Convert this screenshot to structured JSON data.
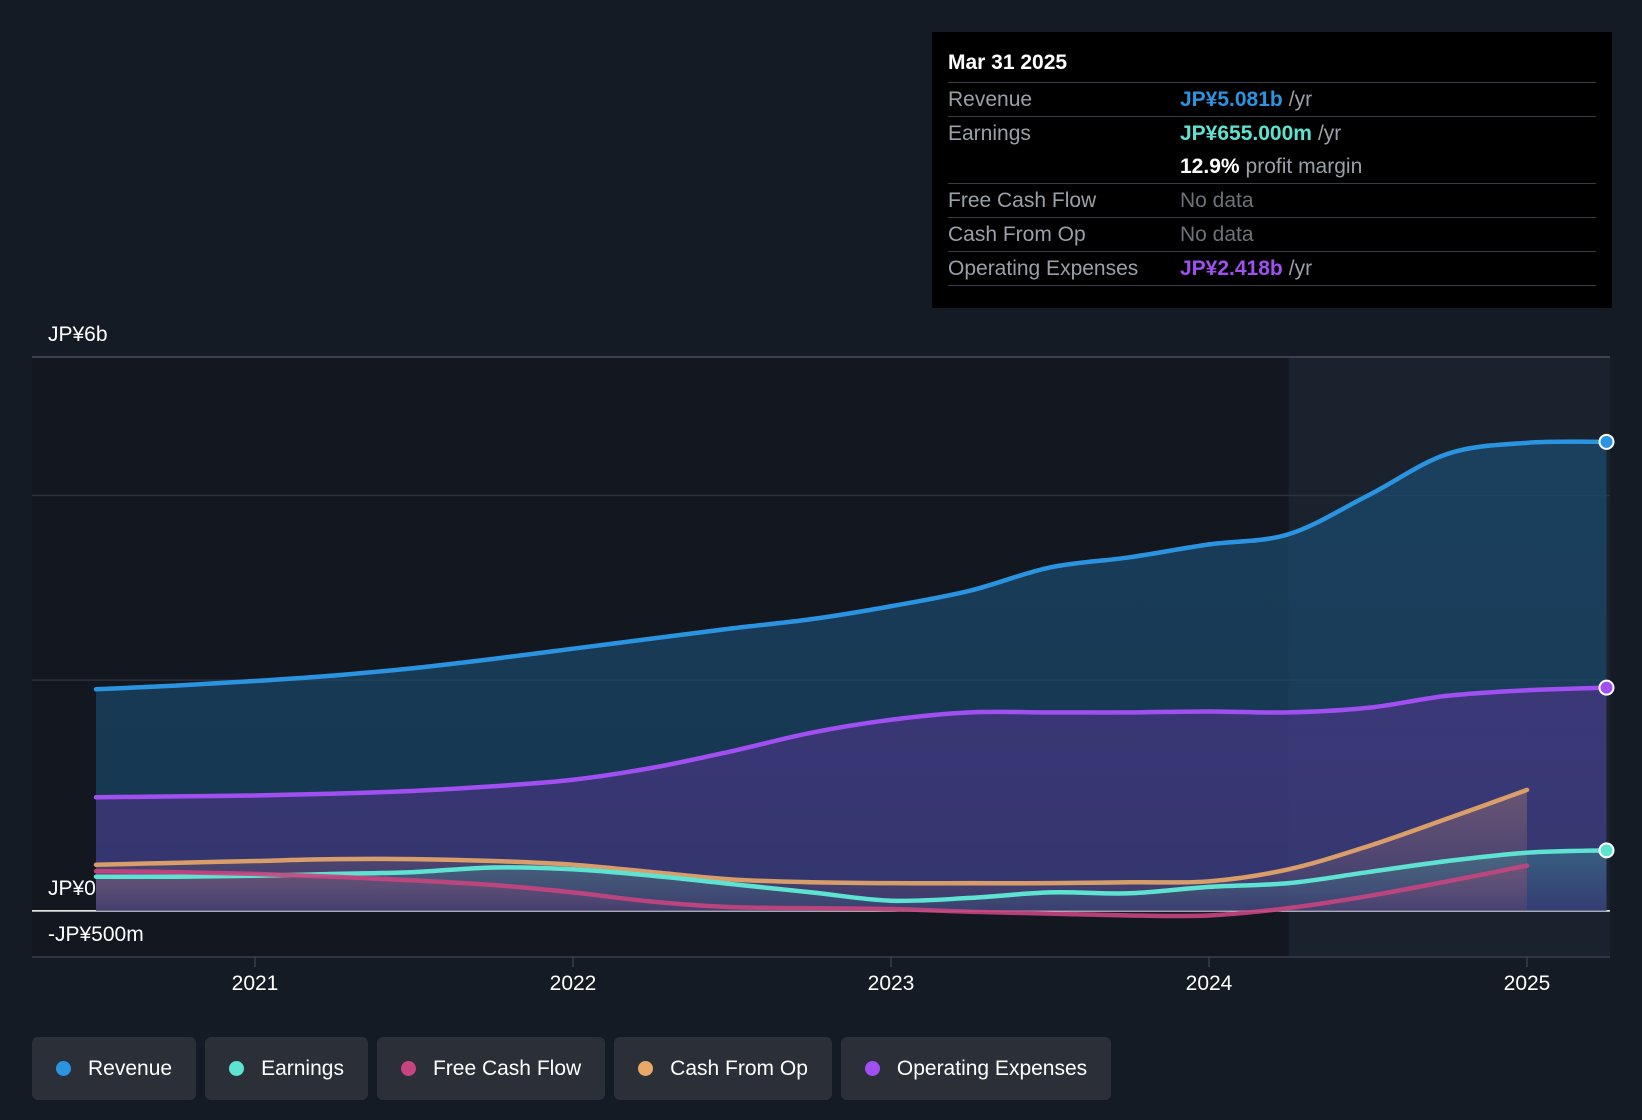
{
  "tooltip": {
    "date": "Mar 31 2025",
    "rows": {
      "revenue": {
        "label": "Revenue",
        "value": "JP¥5.081b",
        "unit": "/yr",
        "color": "#2b94e0"
      },
      "earnings": {
        "label": "Earnings",
        "value": "JP¥655.000m",
        "unit": "/yr",
        "color": "#5ee3d2"
      },
      "margin": {
        "value": "12.9%",
        "text": "profit margin"
      },
      "fcf": {
        "label": "Free Cash Flow",
        "value": "No data"
      },
      "cfo": {
        "label": "Cash From Op",
        "value": "No data"
      },
      "opex": {
        "label": "Operating Expenses",
        "value": "JP¥2.418b",
        "unit": "/yr",
        "color": "#a04ff0"
      }
    }
  },
  "legend": [
    {
      "label": "Revenue",
      "color": "#2b94e0"
    },
    {
      "label": "Earnings",
      "color": "#5ee3d2"
    },
    {
      "label": "Free Cash Flow",
      "color": "#c64580"
    },
    {
      "label": "Cash From Op",
      "color": "#e9a969"
    },
    {
      "label": "Operating Expenses",
      "color": "#a04ff0"
    }
  ],
  "chart_data": {
    "type": "area",
    "y_tick_labels": {
      "top": "JP¥6b",
      "zero": "JP¥0",
      "bottom": "-JP¥500m"
    },
    "ylim": [
      -500,
      6000
    ],
    "x_ticks": [
      2021,
      2022,
      2023,
      2024,
      2025
    ],
    "x_range": [
      2020.5,
      2025.25
    ],
    "highlight_start": 2024.25,
    "series": [
      {
        "name": "Revenue",
        "color": "#2b94e0",
        "points": [
          [
            2020.5,
            2400
          ],
          [
            2020.75,
            2440
          ],
          [
            2021.0,
            2490
          ],
          [
            2021.25,
            2550
          ],
          [
            2021.5,
            2630
          ],
          [
            2021.75,
            2730
          ],
          [
            2022.0,
            2840
          ],
          [
            2022.25,
            2950
          ],
          [
            2022.5,
            3060
          ],
          [
            2022.75,
            3160
          ],
          [
            2023.0,
            3300
          ],
          [
            2023.25,
            3470
          ],
          [
            2023.5,
            3720
          ],
          [
            2023.75,
            3830
          ],
          [
            2024.0,
            3970
          ],
          [
            2024.25,
            4080
          ],
          [
            2024.5,
            4500
          ],
          [
            2024.75,
            4950
          ],
          [
            2025.0,
            5070
          ],
          [
            2025.25,
            5081
          ]
        ]
      },
      {
        "name": "Operating Expenses",
        "color": "#a04ff0",
        "points": [
          [
            2020.5,
            1230
          ],
          [
            2020.75,
            1240
          ],
          [
            2021.0,
            1250
          ],
          [
            2021.25,
            1270
          ],
          [
            2021.5,
            1300
          ],
          [
            2021.75,
            1350
          ],
          [
            2022.0,
            1420
          ],
          [
            2022.25,
            1550
          ],
          [
            2022.5,
            1730
          ],
          [
            2022.75,
            1930
          ],
          [
            2023.0,
            2070
          ],
          [
            2023.25,
            2150
          ],
          [
            2023.5,
            2150
          ],
          [
            2023.75,
            2150
          ],
          [
            2024.0,
            2160
          ],
          [
            2024.25,
            2150
          ],
          [
            2024.5,
            2200
          ],
          [
            2024.75,
            2330
          ],
          [
            2025.0,
            2390
          ],
          [
            2025.25,
            2418
          ]
        ]
      },
      {
        "name": "Cash From Op",
        "color": "#e9a969",
        "points": [
          [
            2020.5,
            500
          ],
          [
            2020.75,
            520
          ],
          [
            2021.0,
            540
          ],
          [
            2021.25,
            560
          ],
          [
            2021.5,
            560
          ],
          [
            2021.75,
            540
          ],
          [
            2022.0,
            500
          ],
          [
            2022.25,
            420
          ],
          [
            2022.5,
            340
          ],
          [
            2022.75,
            310
          ],
          [
            2023.0,
            300
          ],
          [
            2023.25,
            300
          ],
          [
            2023.5,
            300
          ],
          [
            2023.75,
            310
          ],
          [
            2024.0,
            320
          ],
          [
            2024.25,
            450
          ],
          [
            2024.5,
            700
          ],
          [
            2024.75,
            1000
          ],
          [
            2025.0,
            1310
          ]
        ]
      },
      {
        "name": "Earnings",
        "color": "#5ee3d2",
        "points": [
          [
            2020.5,
            370
          ],
          [
            2020.75,
            370
          ],
          [
            2021.0,
            380
          ],
          [
            2021.25,
            400
          ],
          [
            2021.5,
            420
          ],
          [
            2021.75,
            470
          ],
          [
            2022.0,
            450
          ],
          [
            2022.25,
            380
          ],
          [
            2022.5,
            290
          ],
          [
            2022.75,
            200
          ],
          [
            2023.0,
            110
          ],
          [
            2023.25,
            140
          ],
          [
            2023.5,
            200
          ],
          [
            2023.75,
            190
          ],
          [
            2024.0,
            260
          ],
          [
            2024.25,
            300
          ],
          [
            2024.5,
            420
          ],
          [
            2024.75,
            540
          ],
          [
            2025.0,
            630
          ],
          [
            2025.25,
            655
          ]
        ]
      },
      {
        "name": "Free Cash Flow",
        "color": "#c64580",
        "points": [
          [
            2020.5,
            430
          ],
          [
            2020.75,
            420
          ],
          [
            2021.0,
            400
          ],
          [
            2021.25,
            370
          ],
          [
            2021.5,
            330
          ],
          [
            2021.75,
            280
          ],
          [
            2022.0,
            200
          ],
          [
            2022.25,
            100
          ],
          [
            2022.5,
            40
          ],
          [
            2022.75,
            30
          ],
          [
            2023.0,
            20
          ],
          [
            2023.25,
            -10
          ],
          [
            2023.5,
            -30
          ],
          [
            2023.75,
            -50
          ],
          [
            2024.0,
            -50
          ],
          [
            2024.25,
            30
          ],
          [
            2024.5,
            160
          ],
          [
            2024.75,
            320
          ],
          [
            2025.0,
            490
          ]
        ]
      }
    ]
  }
}
